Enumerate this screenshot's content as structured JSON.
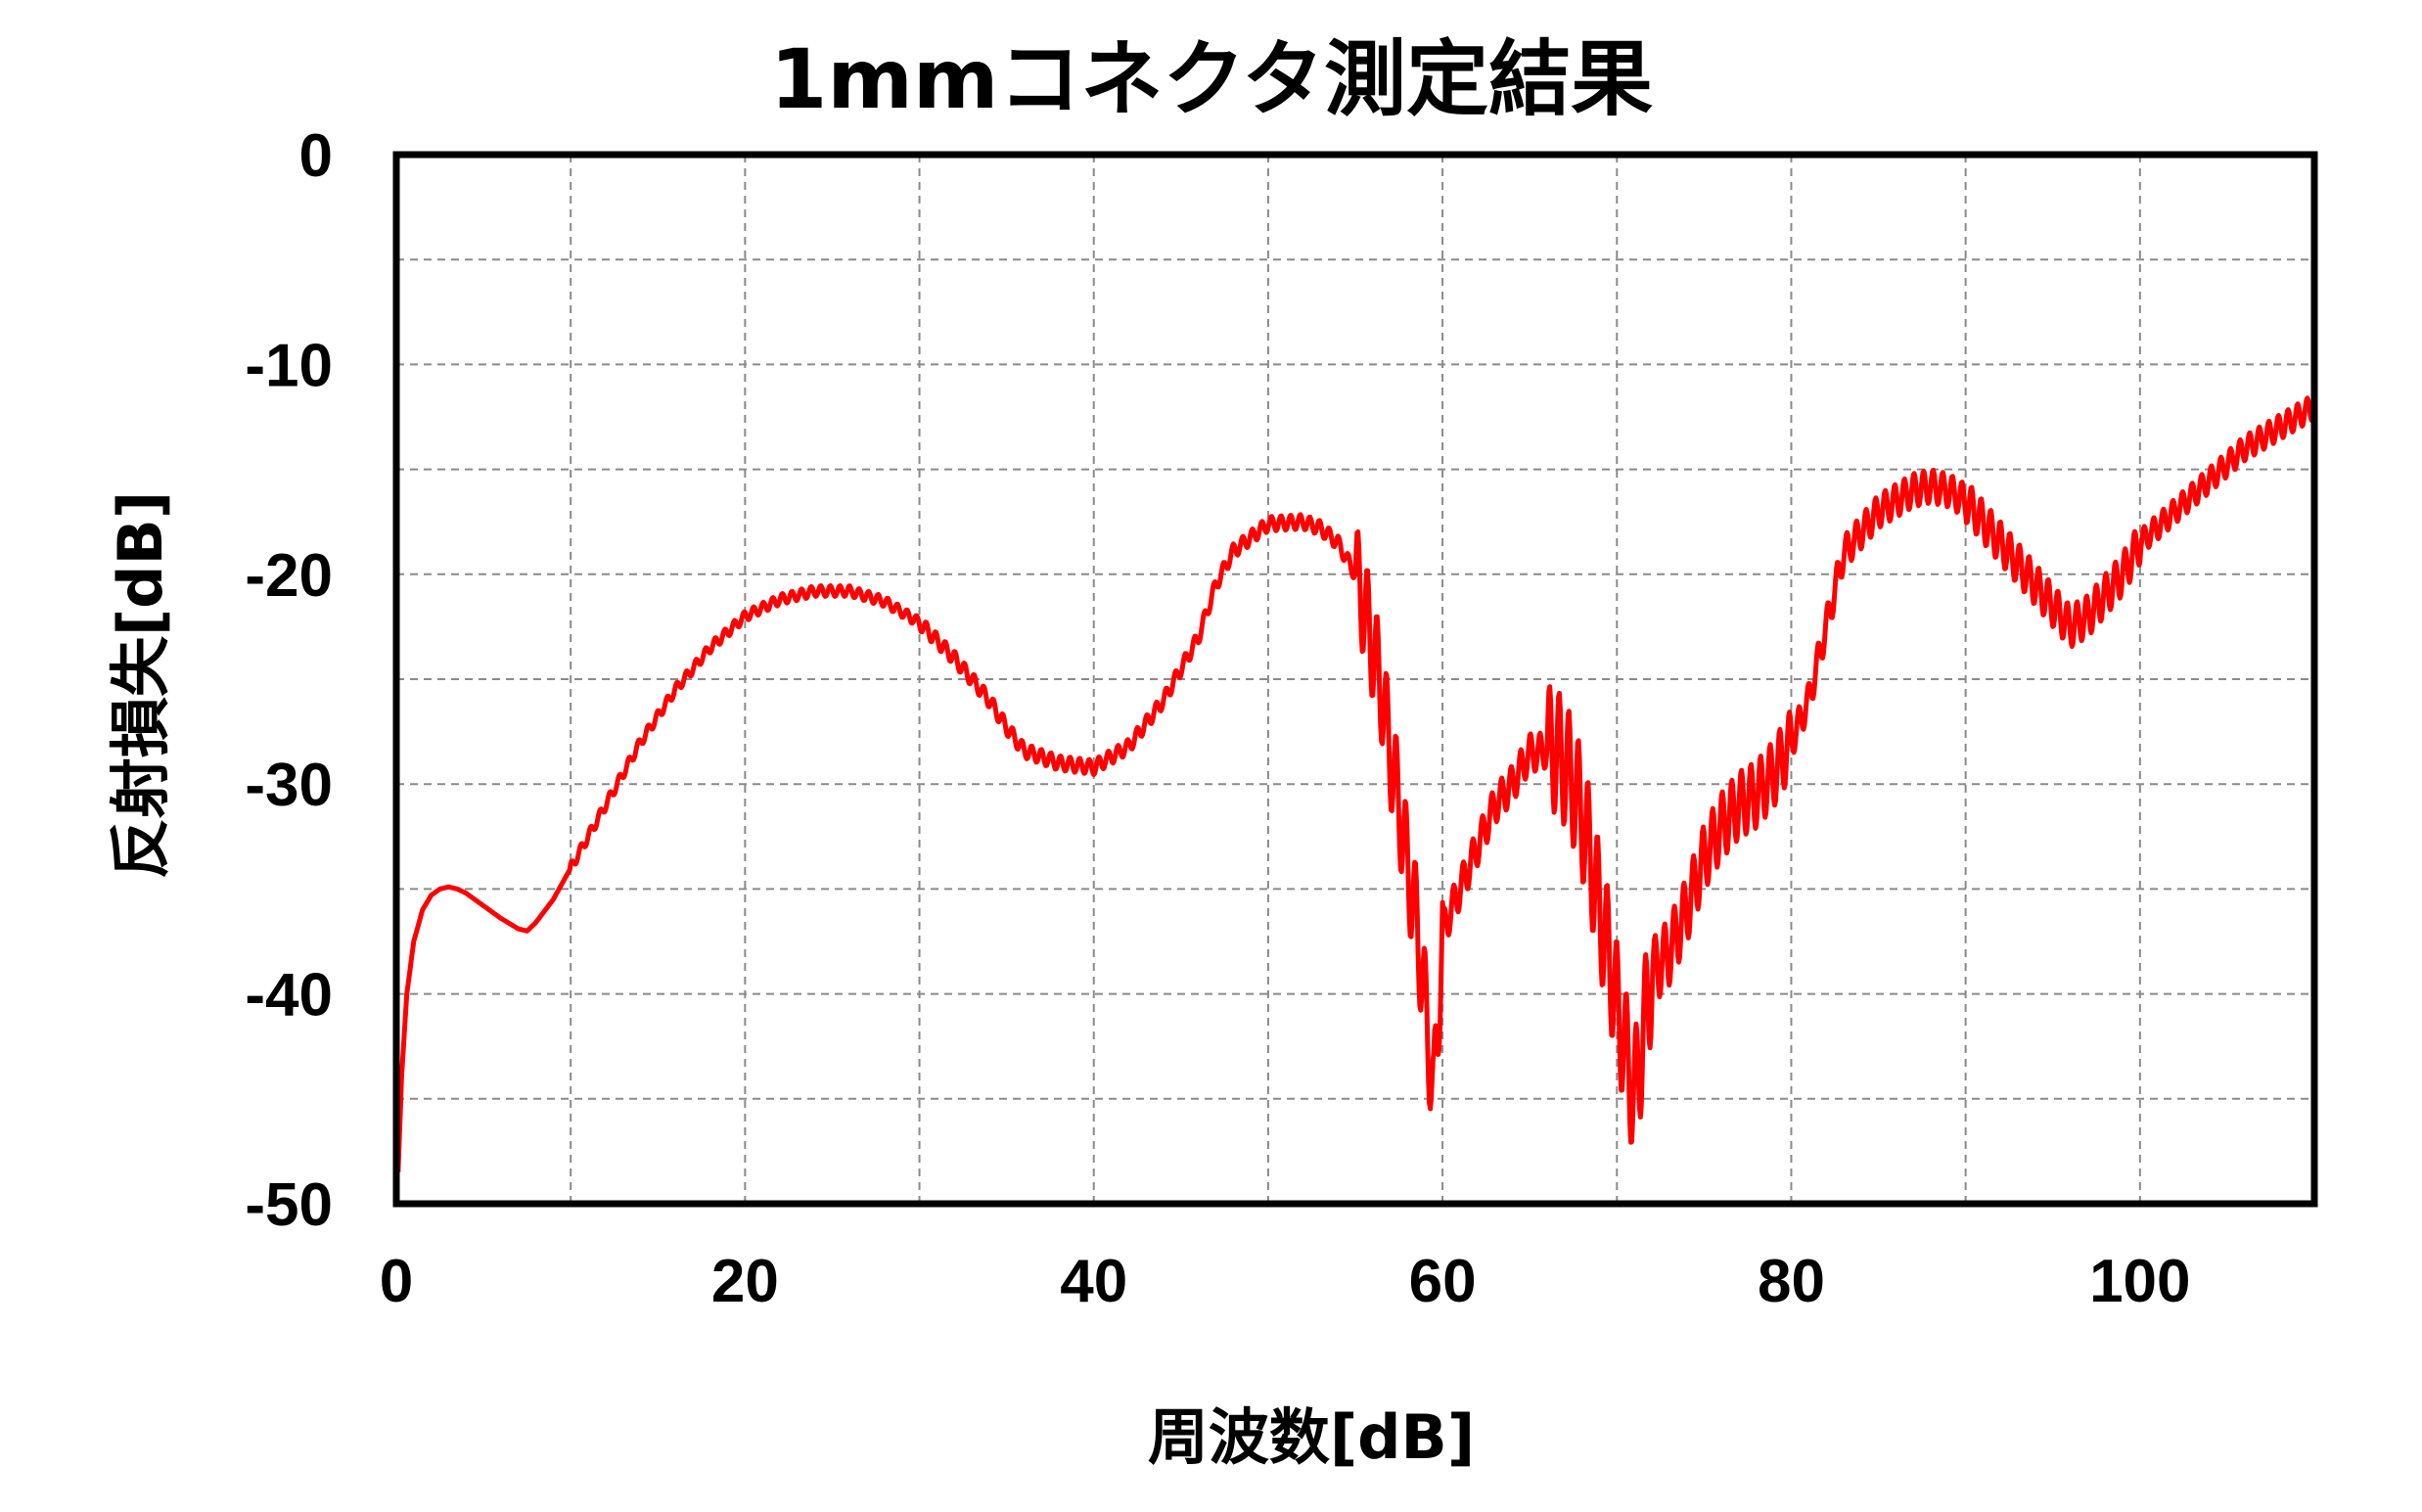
{
  "chart_data": {
    "type": "line",
    "title": "1mmコネクタ測定結果",
    "xlabel": "周波数[dB]",
    "ylabel": "反射損失[dB]",
    "xlim": [
      0,
      110
    ],
    "ylim": [
      -50,
      0
    ],
    "xticks": [
      0,
      20,
      40,
      60,
      80,
      100
    ],
    "yticks": [
      0,
      -10,
      -20,
      -30,
      -40,
      -50
    ],
    "x_minor_step": 10,
    "y_minor_step": 5,
    "grid": true,
    "grid_style": "dashed",
    "series": [
      {
        "color": "#ff0000",
        "x": [
          0.1,
          0.3,
          0.6,
          1,
          1.5,
          2,
          2.5,
          3,
          3.5,
          4,
          5,
          6,
          7,
          7.5,
          8,
          9,
          10,
          11,
          12,
          14,
          16,
          18,
          20,
          22,
          24,
          26,
          28,
          30,
          32,
          34,
          35,
          36,
          38,
          40,
          42,
          44,
          46,
          47,
          48,
          50,
          52,
          53,
          54,
          55,
          55.5,
          56,
          56.5,
          57,
          57.5,
          58,
          58.5,
          59,
          59.5,
          60,
          61,
          62,
          63,
          64,
          65,
          65.5,
          66,
          66.5,
          67,
          67.5,
          68,
          68.5,
          69,
          69.5,
          70,
          71,
          72,
          73,
          74,
          75,
          76,
          77,
          78,
          79,
          80,
          81,
          82,
          83,
          84,
          85,
          86,
          87,
          88,
          89,
          90,
          91,
          92,
          93,
          94,
          95,
          96,
          97,
          98,
          99,
          100,
          102,
          104,
          106,
          108,
          110
        ],
        "y": [
          -48.5,
          -44,
          -40,
          -37.5,
          -36,
          -35.3,
          -35,
          -34.9,
          -35,
          -35.2,
          -35.8,
          -36.4,
          -36.9,
          -37,
          -36.6,
          -35.5,
          -34,
          -32.5,
          -31,
          -28,
          -25.5,
          -23.5,
          -22,
          -21.2,
          -20.8,
          -20.8,
          -21.3,
          -22.3,
          -24,
          -26,
          -27.3,
          -28.4,
          -29,
          -29.2,
          -28.2,
          -26,
          -23,
          -20.5,
          -18.9,
          -17.6,
          -17.5,
          -17.8,
          -18.5,
          -20,
          -21.5,
          -23.5,
          -25.5,
          -28.5,
          -31,
          -34,
          -36.5,
          -40.5,
          -45,
          -37,
          -35,
          -33,
          -31,
          -30,
          -28.5,
          -28.5,
          -28.3,
          -28.4,
          -29,
          -30,
          -31.5,
          -33.5,
          -36,
          -38,
          -40.5,
          -45,
          -39,
          -38,
          -36,
          -33.5,
          -32,
          -31,
          -30.5,
          -29.5,
          -28,
          -26,
          -22.5,
          -19,
          -18,
          -17,
          -16.5,
          -16,
          -15.8,
          -16,
          -16.5,
          -17.5,
          -18.5,
          -19.5,
          -20.5,
          -21.5,
          -22.5,
          -22,
          -21,
          -20,
          -18.5,
          -17,
          -15.5,
          -14,
          -13,
          -12
        ]
      }
    ]
  }
}
